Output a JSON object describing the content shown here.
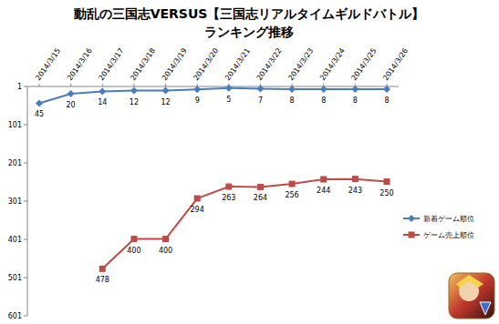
{
  "chart_data": {
    "type": "line",
    "title": "動乱の三国志VERSUS【三国志リアルタイムギルドバトル】",
    "subtitle": "ランキング推移",
    "categories": [
      "2014/3/15",
      "2014/3/16",
      "2014/3/17",
      "2014/3/18",
      "2014/3/19",
      "2014/3/20",
      "2014/3/21",
      "2014/3/22",
      "2014/3/23",
      "2014/3/24",
      "2014/3/25",
      "2014/3/26"
    ],
    "series": [
      {
        "name": "新着ゲーム順位",
        "color": "#4a7ebb",
        "marker": "diamond",
        "values": [
          45,
          20,
          14,
          12,
          12,
          9,
          5,
          7,
          8,
          8,
          8,
          8
        ]
      },
      {
        "name": "ゲーム売上順位",
        "color": "#be4b48",
        "marker": "square",
        "values": [
          null,
          null,
          478,
          400,
          400,
          294,
          263,
          264,
          256,
          244,
          243,
          250
        ]
      }
    ],
    "ylim": [
      601,
      1
    ],
    "yticks": [
      1,
      101,
      201,
      301,
      401,
      501,
      601
    ],
    "grid": false,
    "legend": "right",
    "data_labels": true
  }
}
